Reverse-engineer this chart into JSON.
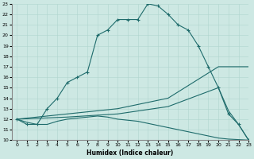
{
  "xlabel": "Humidex (Indice chaleur)",
  "xlim": [
    -0.5,
    23
  ],
  "ylim": [
    10,
    23
  ],
  "xticks": [
    0,
    1,
    2,
    3,
    4,
    5,
    6,
    7,
    8,
    9,
    10,
    11,
    12,
    13,
    14,
    15,
    16,
    17,
    18,
    19,
    20,
    21,
    22,
    23
  ],
  "yticks": [
    10,
    11,
    12,
    13,
    14,
    15,
    16,
    17,
    18,
    19,
    20,
    21,
    22,
    23
  ],
  "bg_color": "#cde8e3",
  "line_color": "#1e6b6b",
  "grid_color": "#b0d5ce",
  "curve1_x": [
    0,
    1,
    2,
    3,
    4,
    5,
    6,
    7,
    8,
    9,
    10,
    11,
    12,
    13,
    14,
    15,
    16,
    17,
    18,
    19,
    20,
    21,
    22,
    23
  ],
  "curve1_y": [
    12,
    11.5,
    11.5,
    13,
    14,
    15.5,
    16,
    16.5,
    20,
    20.5,
    21.5,
    21.5,
    21.5,
    23,
    22.8,
    22,
    21,
    20.5,
    19,
    17,
    15,
    12.5,
    11.5,
    10
  ],
  "curve2_x": [
    0,
    1,
    2,
    3,
    4,
    5,
    6,
    7,
    8,
    9,
    10,
    11,
    12,
    13,
    14,
    15,
    16,
    17,
    18,
    19,
    20,
    21,
    22,
    23
  ],
  "curve2_y": [
    12,
    11.7,
    11.5,
    11.5,
    11.8,
    12,
    12.1,
    12.2,
    12.3,
    12.2,
    12.0,
    11.9,
    11.8,
    11.6,
    11.4,
    11.2,
    11.0,
    10.8,
    10.6,
    10.4,
    10.2,
    10.1,
    10.05,
    10
  ],
  "curve3_x": [
    0,
    5,
    10,
    15,
    20,
    23
  ],
  "curve3_y": [
    12,
    12.5,
    13.0,
    14.0,
    17.0,
    17.0
  ],
  "curve4_x": [
    0,
    5,
    10,
    15,
    20,
    21,
    22,
    23
  ],
  "curve4_y": [
    12,
    12.2,
    12.5,
    13.2,
    15.0,
    12.8,
    11.5,
    10
  ]
}
